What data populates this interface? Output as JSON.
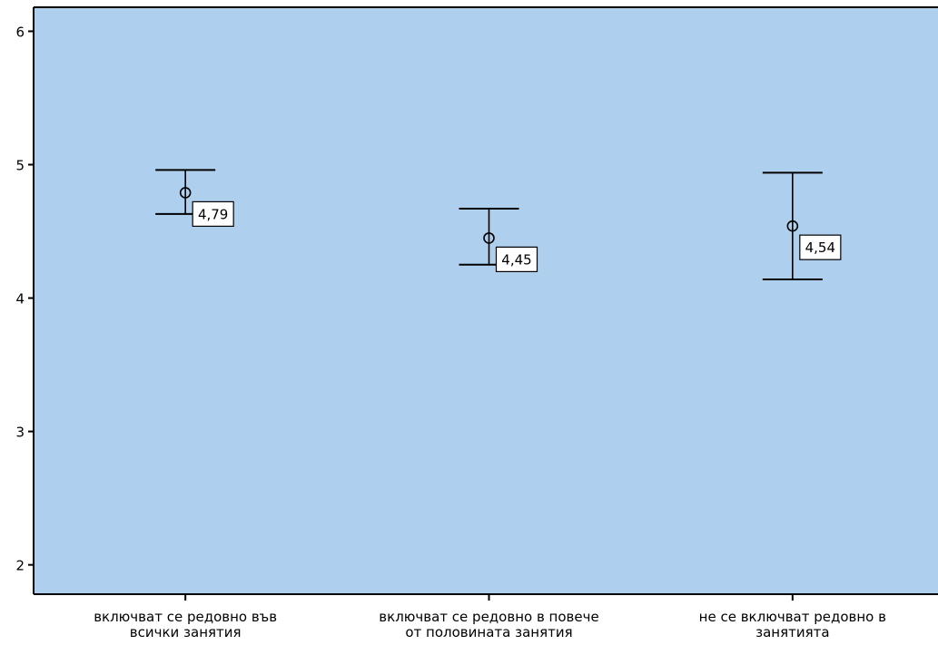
{
  "chart_data": {
    "type": "error-bar",
    "title": "",
    "xlabel": "",
    "ylabel": "",
    "ylim": [
      1.78,
      6.18
    ],
    "yticks": [
      "2",
      "3",
      "4",
      "5",
      "6"
    ],
    "grid": false,
    "colors": {
      "plot_background": "#aecfee",
      "line": "#000000",
      "label_box": "#ffffff"
    },
    "categories": [
      [
        "включват се редовно във",
        "всички занятия"
      ],
      [
        "включват се редовно в повече",
        "от половината занятия"
      ],
      [
        "не се включват редовно в",
        "занятията"
      ]
    ],
    "points": [
      {
        "mean": 4.79,
        "lower": 4.63,
        "upper": 4.96,
        "label": "4,79"
      },
      {
        "mean": 4.45,
        "lower": 4.25,
        "upper": 4.67,
        "label": "4,45"
      },
      {
        "mean": 4.54,
        "lower": 4.14,
        "upper": 4.94,
        "label": "4,54"
      }
    ]
  }
}
